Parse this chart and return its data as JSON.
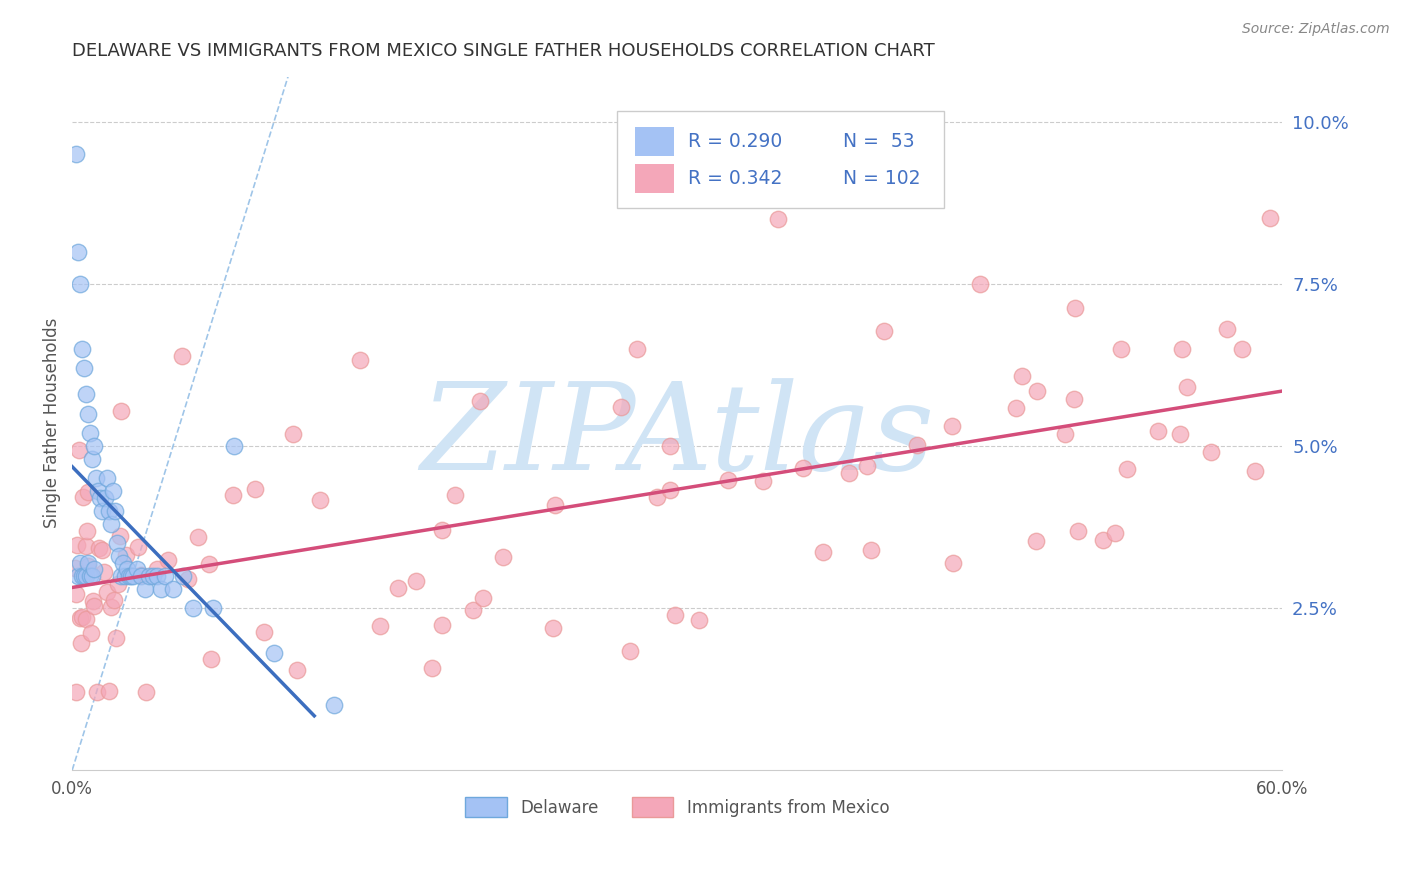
{
  "title": "DELAWARE VS IMMIGRANTS FROM MEXICO SINGLE FATHER HOUSEHOLDS CORRELATION CHART",
  "source": "Source: ZipAtlas.com",
  "ylabel": "Single Father Households",
  "xmin": 0.0,
  "xmax": 0.6,
  "ymin": 0.0,
  "ymax": 0.107,
  "ytick_vals": [
    0.025,
    0.05,
    0.075,
    0.1
  ],
  "ytick_labels": [
    "2.5%",
    "5.0%",
    "7.5%",
    "10.0%"
  ],
  "xtick_vals": [
    0.0,
    0.1,
    0.2,
    0.3,
    0.4,
    0.5,
    0.6
  ],
  "xtick_labels": [
    "0.0%",
    "",
    "",
    "",
    "",
    "",
    "60.0%"
  ],
  "legend_r1": "R = 0.290",
  "legend_n1": "N =  53",
  "legend_r2": "R = 0.342",
  "legend_n2": "N = 102",
  "color_del_fill": "#a4c2f4",
  "color_del_edge": "#6fa8dc",
  "color_mex_fill": "#f4a7b9",
  "color_mex_edge": "#ea9999",
  "color_del_line": "#3c6ebf",
  "color_mex_line": "#d44d7a",
  "color_diag": "#9fc5e8",
  "watermark": "ZIPAtlas",
  "watermark_color": "#d0e4f5",
  "background": "#ffffff",
  "grid_color": "#cccccc",
  "title_color": "#333333",
  "right_tick_color": "#4472c4",
  "source_color": "#888888"
}
